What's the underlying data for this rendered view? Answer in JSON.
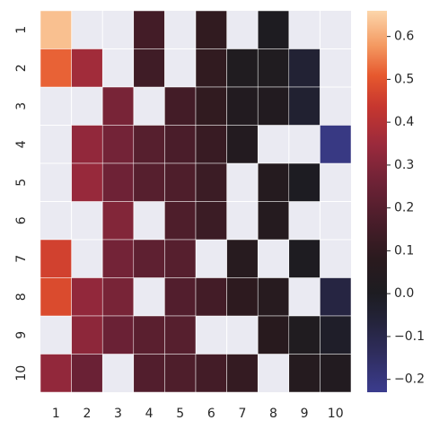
{
  "chart_data": {
    "type": "heatmap",
    "title": "",
    "xlabel": "",
    "ylabel": "",
    "x_categories": [
      "1",
      "2",
      "3",
      "4",
      "5",
      "6",
      "7",
      "8",
      "9",
      "10"
    ],
    "y_categories": [
      "1",
      "2",
      "3",
      "4",
      "5",
      "6",
      "7",
      "8",
      "9",
      "10"
    ],
    "values": [
      [
        0.63,
        null,
        null,
        0.15,
        null,
        0.1,
        null,
        0.01,
        null,
        null
      ],
      [
        0.52,
        0.36,
        null,
        0.14,
        null,
        0.1,
        0.02,
        0.02,
        -0.05,
        null
      ],
      [
        null,
        null,
        0.28,
        null,
        0.15,
        0.1,
        0.03,
        0.03,
        -0.04,
        null
      ],
      [
        null,
        0.33,
        0.27,
        0.2,
        0.17,
        0.12,
        0.04,
        null,
        null,
        -0.21
      ],
      [
        null,
        0.34,
        0.26,
        0.2,
        0.18,
        0.13,
        null,
        0.05,
        0.0,
        null
      ],
      [
        null,
        null,
        0.3,
        null,
        0.18,
        0.13,
        null,
        0.05,
        null,
        null
      ],
      [
        0.46,
        null,
        0.27,
        0.22,
        0.2,
        null,
        0.06,
        null,
        0.01,
        null
      ],
      [
        0.48,
        0.33,
        0.28,
        null,
        0.19,
        0.15,
        0.09,
        0.06,
        null,
        -0.08
      ],
      [
        null,
        0.32,
        0.25,
        0.21,
        0.2,
        null,
        null,
        0.07,
        0.02,
        -0.02
      ],
      [
        0.33,
        0.25,
        null,
        0.19,
        0.18,
        0.15,
        0.11,
        null,
        0.05,
        0.03
      ]
    ],
    "missing_color": "#eaeaf2",
    "colorbar": {
      "vmin": -0.23,
      "vmax": 0.66,
      "ticks": [
        -0.2,
        -0.1,
        0.0,
        0.1,
        0.2,
        0.3,
        0.4,
        0.5,
        0.6
      ],
      "tick_labels": [
        "−0.2",
        "−0.1",
        "0.0",
        "0.1",
        "0.2",
        "0.3",
        "0.4",
        "0.5",
        "0.6"
      ],
      "colormap": "icefire",
      "stops": [
        [
          0.0,
          "#3b3c8e"
        ],
        [
          0.1,
          "#2f2d5e"
        ],
        [
          0.2,
          "#222235"
        ],
        [
          0.26,
          "#1d1c21"
        ],
        [
          0.35,
          "#2a1a1e"
        ],
        [
          0.45,
          "#4a1d2a"
        ],
        [
          0.55,
          "#6e2236"
        ],
        [
          0.65,
          "#9b2a3c"
        ],
        [
          0.75,
          "#c7372f"
        ],
        [
          0.83,
          "#e6582e"
        ],
        [
          0.91,
          "#f49a62"
        ],
        [
          1.0,
          "#fcd6ab"
        ]
      ]
    },
    "grid": false,
    "legend": "colorbar-right"
  }
}
